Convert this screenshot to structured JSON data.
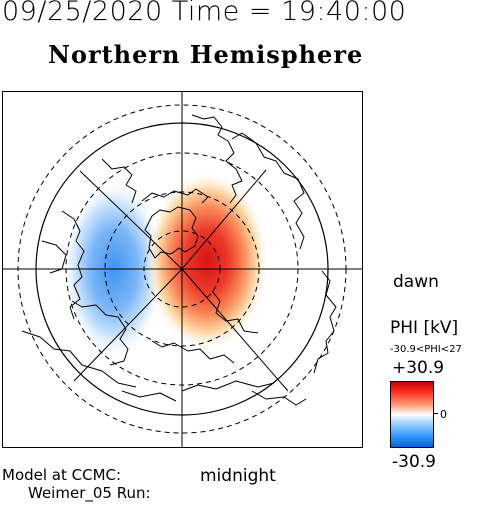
{
  "header": {
    "datetime_label": "09/25/2020 Time = 19:40:00",
    "hemisphere_title": "Northern Hemisphere"
  },
  "map": {
    "orientation_labels": {
      "dawn": "dawn",
      "midnight": "midnight"
    },
    "positive_color": "#e0281e",
    "negative_color": "#2f8ef0"
  },
  "colorbar": {
    "title": "PHI [kV]",
    "range_text": "-30.9<PHI<27",
    "max_label": "+30.9",
    "zero_label": "0",
    "min_label": "-30.9"
  },
  "footer": {
    "model_label": "Model at CCMC:",
    "run_label": "Weimer_05 Run:"
  }
}
